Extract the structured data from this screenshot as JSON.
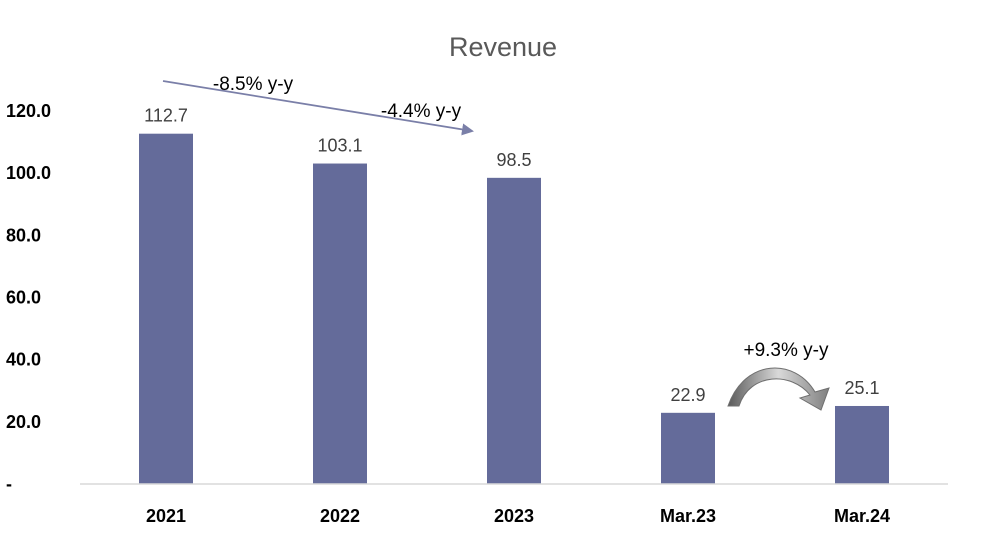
{
  "chart_data": {
    "type": "bar",
    "title": "Revenue",
    "xlabel": "",
    "ylabel": "",
    "categories": [
      "2021",
      "2022",
      "2023",
      "Mar.23",
      "Mar.24"
    ],
    "values": [
      112.7,
      103.1,
      98.5,
      22.9,
      25.1
    ],
    "data_labels": [
      "112.7",
      "103.1",
      "98.5",
      "22.9",
      "25.1"
    ],
    "ylim": [
      0,
      120
    ],
    "yticks": [
      0,
      20,
      40,
      60,
      80,
      100,
      120
    ],
    "ytick_labels": [
      "-",
      "20.0",
      "40.0",
      "60.0",
      "80.0",
      "100.0",
      "120.0"
    ],
    "grid": false,
    "legend": "none",
    "annotations": [
      {
        "text": "-8.5% y-y",
        "from": "2021",
        "to": "2022"
      },
      {
        "text": "-4.4% y-y",
        "from": "2022",
        "to": "2023"
      },
      {
        "text": "+9.3% y-y",
        "from": "Mar.23",
        "to": "Mar.24"
      }
    ],
    "colors": {
      "bar": "#646b9a",
      "trend_arrow": "#7a7fa8",
      "curved_arrow": "#8c8c8c"
    }
  }
}
